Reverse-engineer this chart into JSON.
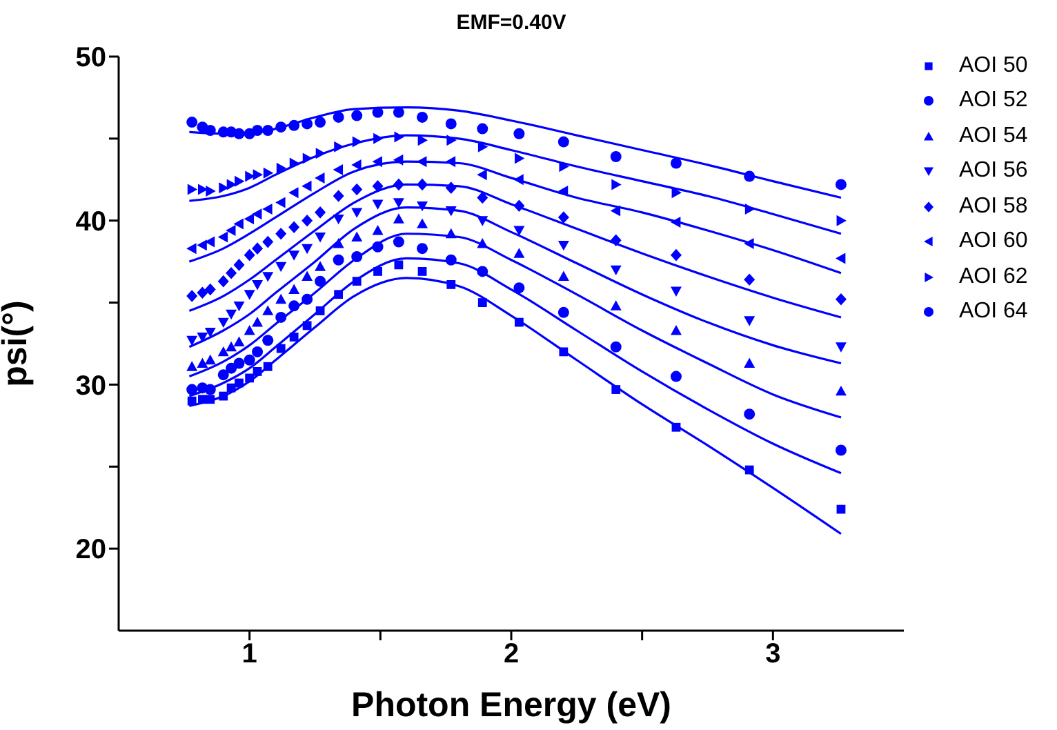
{
  "chart_data": {
    "type": "scatter",
    "title": "EMF=0.40V",
    "xlabel": "Photon Energy (eV)",
    "ylabel": "psi(°)",
    "xlim": [
      0.5,
      3.5
    ],
    "xticks": [
      1,
      {
        "value": 1.5,
        "label": null
      },
      2,
      {
        "value": 2.5,
        "label": null
      },
      3
    ],
    "ylim": [
      15,
      50
    ],
    "yticks": [
      20,
      {
        "value": 25,
        "label": null
      },
      30,
      {
        "value": 35,
        "label": null
      },
      40,
      {
        "value": 45,
        "label": null
      },
      50
    ],
    "legend": "right",
    "x": [
      0.78,
      0.82,
      0.85,
      0.9,
      0.93,
      0.96,
      1.0,
      1.03,
      1.07,
      1.12,
      1.17,
      1.22,
      1.27,
      1.34,
      1.41,
      1.49,
      1.57,
      1.66,
      1.77,
      1.89,
      2.03,
      2.2,
      2.4,
      2.63,
      2.91,
      3.26
    ],
    "series": [
      {
        "name": "AOI 50",
        "type": "scatter",
        "marker": "square",
        "color": "#0000ff",
        "values": [
          29.0,
          29.1,
          29.1,
          29.3,
          29.8,
          30.1,
          30.4,
          30.8,
          31.1,
          32.2,
          32.9,
          33.6,
          34.5,
          35.5,
          36.3,
          36.9,
          37.3,
          36.9,
          36.1,
          35.0,
          33.8,
          32.0,
          29.7,
          27.4,
          24.8,
          22.4
        ]
      },
      {
        "name": "AOI 52",
        "type": "scatter",
        "marker": "circle",
        "color": "#0000ff",
        "values": [
          29.7,
          29.8,
          29.7,
          30.6,
          31.0,
          31.3,
          31.5,
          32.0,
          32.7,
          34.1,
          34.8,
          35.2,
          36.3,
          37.6,
          37.8,
          38.4,
          38.7,
          38.3,
          37.6,
          36.9,
          35.9,
          34.4,
          32.3,
          30.5,
          28.2,
          26.0
        ]
      },
      {
        "name": "AOI 54",
        "type": "scatter",
        "marker": "triangle",
        "color": "#0000ff",
        "values": [
          31.1,
          31.3,
          31.5,
          32.0,
          32.3,
          32.6,
          33.3,
          33.8,
          34.5,
          35.2,
          35.8,
          36.6,
          37.2,
          38.6,
          39.0,
          39.4,
          40.1,
          39.8,
          39.2,
          38.6,
          38.0,
          36.6,
          34.8,
          33.3,
          31.3,
          29.6
        ]
      },
      {
        "name": "AOI 56",
        "type": "scatter",
        "marker": "triangle-down",
        "color": "#0000ff",
        "values": [
          32.7,
          32.9,
          33.2,
          33.8,
          34.3,
          34.8,
          35.5,
          36.1,
          36.6,
          37.2,
          37.9,
          38.3,
          39.0,
          40.1,
          40.5,
          41.0,
          41.1,
          40.9,
          40.6,
          40.0,
          39.4,
          38.5,
          37.0,
          35.7,
          33.9,
          32.3
        ]
      },
      {
        "name": "AOI 58",
        "type": "scatter",
        "marker": "diamond",
        "color": "#0000ff",
        "values": [
          35.4,
          35.6,
          35.8,
          36.3,
          36.8,
          37.3,
          37.9,
          38.3,
          38.7,
          39.2,
          39.6,
          40.0,
          40.5,
          41.5,
          41.9,
          42.1,
          42.2,
          42.2,
          42.0,
          41.4,
          40.9,
          40.2,
          38.8,
          37.9,
          36.4,
          35.2
        ]
      },
      {
        "name": "AOI 60",
        "type": "scatter",
        "marker": "triangle-left",
        "color": "#0000ff",
        "values": [
          38.3,
          38.5,
          38.7,
          39.0,
          39.4,
          39.8,
          40.1,
          40.4,
          40.7,
          41.1,
          41.7,
          42.1,
          42.6,
          43.1,
          43.4,
          43.6,
          43.7,
          43.6,
          43.6,
          42.8,
          42.5,
          41.8,
          40.6,
          39.9,
          38.6,
          37.7
        ]
      },
      {
        "name": "AOI 62",
        "type": "scatter",
        "marker": "triangle-right",
        "color": "#0000ff",
        "values": [
          41.9,
          41.9,
          41.8,
          42.0,
          42.2,
          42.4,
          42.7,
          42.8,
          42.9,
          43.2,
          43.5,
          43.8,
          44.1,
          44.5,
          44.8,
          45.0,
          45.1,
          44.9,
          44.9,
          44.5,
          43.8,
          43.3,
          42.2,
          41.7,
          40.7,
          40.0
        ]
      },
      {
        "name": "AOI 64",
        "type": "scatter",
        "marker": "circle",
        "color": "#0000ff",
        "values": [
          46.0,
          45.7,
          45.5,
          45.4,
          45.4,
          45.3,
          45.3,
          45.5,
          45.5,
          45.7,
          45.8,
          45.9,
          46.0,
          46.3,
          46.4,
          46.6,
          46.6,
          46.3,
          45.9,
          45.6,
          45.3,
          44.8,
          43.9,
          43.5,
          42.7,
          42.2
        ]
      },
      {
        "type": "line",
        "color": "#0000ff",
        "x": [
          0.77,
          0.9,
          1.0,
          1.1,
          1.25,
          1.4,
          1.6,
          1.8,
          2.0,
          2.25,
          2.5,
          2.75,
          3.0,
          3.26
        ],
        "values": [
          28.7,
          29.3,
          30.2,
          31.5,
          33.5,
          35.4,
          36.5,
          36.0,
          34.2,
          31.5,
          28.8,
          26.3,
          23.7,
          20.9
        ]
      },
      {
        "type": "line",
        "color": "#0000ff",
        "x": [
          0.77,
          0.9,
          1.0,
          1.1,
          1.25,
          1.4,
          1.6,
          1.8,
          2.0,
          2.25,
          2.5,
          2.75,
          3.0,
          3.26
        ],
        "values": [
          29.3,
          30.1,
          31.0,
          32.3,
          34.3,
          36.3,
          37.7,
          37.4,
          35.8,
          33.3,
          30.8,
          28.5,
          26.4,
          24.6
        ]
      },
      {
        "type": "line",
        "color": "#0000ff",
        "x": [
          0.77,
          0.9,
          1.0,
          1.1,
          1.25,
          1.4,
          1.6,
          1.8,
          2.0,
          2.25,
          2.5,
          2.75,
          3.0,
          3.26
        ],
        "values": [
          30.5,
          31.4,
          32.4,
          33.7,
          35.6,
          37.6,
          39.2,
          39.0,
          37.6,
          35.5,
          33.3,
          31.3,
          29.4,
          28.0
        ]
      },
      {
        "type": "line",
        "color": "#0000ff",
        "x": [
          0.77,
          0.9,
          1.0,
          1.1,
          1.25,
          1.4,
          1.6,
          1.8,
          2.0,
          2.25,
          2.5,
          2.75,
          3.0,
          3.26
        ],
        "values": [
          32.3,
          33.3,
          34.3,
          35.6,
          37.5,
          39.5,
          40.8,
          40.6,
          39.3,
          37.4,
          35.5,
          33.8,
          32.4,
          31.3
        ]
      },
      {
        "type": "line",
        "color": "#0000ff",
        "x": [
          0.77,
          0.9,
          1.0,
          1.1,
          1.25,
          1.4,
          1.6,
          1.8,
          2.0,
          2.25,
          2.5,
          2.75,
          3.0,
          3.26
        ],
        "values": [
          34.5,
          35.4,
          36.4,
          37.6,
          39.4,
          41.1,
          42.2,
          42.1,
          41.0,
          39.5,
          38.0,
          36.6,
          35.3,
          34.1
        ]
      },
      {
        "type": "line",
        "color": "#0000ff",
        "x": [
          0.77,
          0.9,
          1.0,
          1.1,
          1.25,
          1.4,
          1.6,
          1.8,
          2.0,
          2.25,
          2.5,
          2.75,
          3.0,
          3.26
        ],
        "values": [
          37.5,
          38.3,
          39.2,
          40.2,
          41.7,
          43.0,
          43.6,
          43.5,
          42.6,
          41.4,
          40.5,
          39.4,
          38.2,
          36.8
        ]
      },
      {
        "type": "line",
        "color": "#0000ff",
        "x": [
          0.77,
          0.9,
          1.0,
          1.1,
          1.25,
          1.4,
          1.6,
          1.8,
          2.0,
          2.25,
          2.5,
          2.75,
          3.0,
          3.26
        ],
        "values": [
          41.2,
          41.5,
          42.0,
          42.8,
          43.9,
          44.7,
          45.2,
          45.0,
          44.3,
          43.3,
          42.4,
          41.5,
          40.4,
          39.2
        ]
      },
      {
        "type": "line",
        "color": "#0000ff",
        "x": [
          0.77,
          0.9,
          1.0,
          1.1,
          1.25,
          1.4,
          1.6,
          1.8,
          2.0,
          2.25,
          2.5,
          2.75,
          3.0,
          3.26
        ],
        "values": [
          45.4,
          45.3,
          45.3,
          45.6,
          46.3,
          46.8,
          46.9,
          46.7,
          46.1,
          45.2,
          44.3,
          43.4,
          42.4,
          41.4
        ]
      }
    ]
  }
}
